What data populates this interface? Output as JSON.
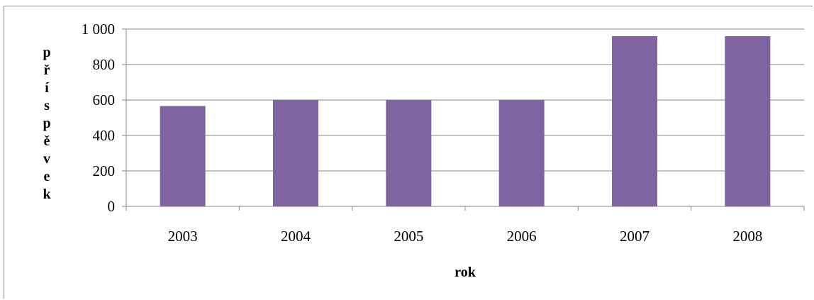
{
  "chart_data": {
    "type": "bar",
    "categories": [
      "2003",
      "2004",
      "2005",
      "2006",
      "2007",
      "2008"
    ],
    "values": [
      566,
      600,
      600,
      600,
      960,
      960
    ],
    "xlabel": "rok",
    "ylabel": "příspěvek",
    "ylim": [
      0,
      1000
    ],
    "yticks": [
      0,
      200,
      400,
      600,
      800,
      1000
    ],
    "ytick_labels": [
      "0",
      "200",
      "400",
      "600",
      "800",
      "1 000"
    ],
    "grid": true,
    "legend": "none",
    "bar_color": "#8064a2",
    "gridline_color": "#868686"
  }
}
